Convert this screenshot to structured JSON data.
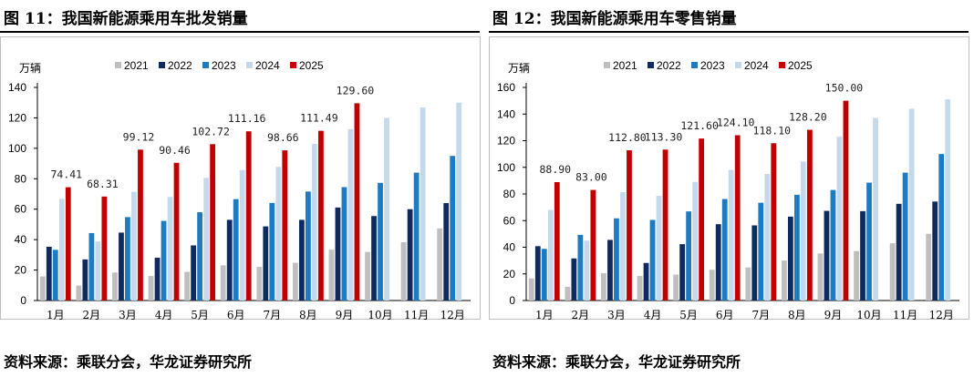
{
  "charts": [
    {
      "figure_title": "图 11：我国新能源乘用车批发销量",
      "source_note": "资料来源：乘联分会，华龙证券研究所",
      "chart_data": {
        "type": "bar",
        "unit_label": "万辆",
        "categories": [
          "1月",
          "2月",
          "3月",
          "4月",
          "5月",
          "6月",
          "7月",
          "8月",
          "9月",
          "10月",
          "11月",
          "12月"
        ],
        "ylim": [
          0,
          140
        ],
        "yticks": [
          0,
          20,
          40,
          60,
          80,
          100,
          120,
          140
        ],
        "legend_position": "top",
        "series": [
          {
            "name": "2021",
            "color": "#bfbfbf",
            "values": [
              15.8,
              9.8,
              18.4,
              16.1,
              18.8,
              23.1,
              22.1,
              24.8,
              33.4,
              31.9,
              38.3,
              47.4
            ]
          },
          {
            "name": "2022",
            "color": "#0e2a5e",
            "values": [
              35.3,
              27.0,
              44.6,
              28.1,
              36.2,
              53.0,
              48.7,
              53.0,
              61.1,
              55.5,
              60.0,
              64.0
            ]
          },
          {
            "name": "2023",
            "color": "#1f7bc1",
            "values": [
              33.3,
              44.3,
              54.8,
              52.3,
              58.0,
              66.6,
              64.1,
              71.6,
              74.5,
              77.3,
              84.0,
              95.0
            ]
          },
          {
            "name": "2024",
            "color": "#c5d9ec",
            "values": [
              66.8,
              38.8,
              71.4,
              68.1,
              80.6,
              85.7,
              87.8,
              102.9,
              112.6,
              119.9,
              126.8,
              130.0
            ]
          },
          {
            "name": "2025",
            "color": "#c00000",
            "values": [
              74.41,
              68.31,
              99.12,
              90.46,
              102.72,
              111.16,
              98.66,
              111.49,
              129.6,
              null,
              null,
              null
            ]
          }
        ],
        "data_labels": [
          "74.41",
          "68.31",
          "99.12",
          "90.46",
          "102.72",
          "111.16",
          "98.66",
          "111.49",
          "129.60"
        ]
      }
    },
    {
      "figure_title": "图 12：我国新能源乘用车零售销量",
      "source_note": "资料来源：乘联分会，华龙证券研究所",
      "chart_data": {
        "type": "bar",
        "unit_label": "万辆",
        "categories": [
          "1月",
          "2月",
          "3月",
          "4月",
          "5月",
          "6月",
          "7月",
          "8月",
          "9月",
          "10月",
          "11月",
          "12月"
        ],
        "ylim": [
          0,
          160
        ],
        "yticks": [
          0,
          20,
          40,
          60,
          80,
          100,
          120,
          140,
          160
        ],
        "legend_position": "top",
        "series": [
          {
            "name": "2021",
            "color": "#bfbfbf",
            "values": [
              16.6,
              10.3,
              20.5,
              18.4,
              19.5,
              23.1,
              24.8,
              30.0,
              35.3,
              37.1,
              43.0,
              50.1
            ]
          },
          {
            "name": "2022",
            "color": "#0e2a5e",
            "values": [
              40.8,
              31.6,
              45.5,
              28.2,
              42.3,
              57.3,
              56.4,
              63.0,
              67.3,
              67.1,
              72.6,
              74.3
            ]
          },
          {
            "name": "2023",
            "color": "#1f7bc1",
            "values": [
              38.8,
              49.3,
              61.7,
              60.5,
              66.9,
              76.2,
              73.4,
              79.4,
              83.0,
              88.5,
              96.0,
              110.0
            ]
          },
          {
            "name": "2024",
            "color": "#c5d9ec",
            "values": [
              68.0,
              45.0,
              81.3,
              78.6,
              89.0,
              98.0,
              95.0,
              104.4,
              123.0,
              137.0,
              144.0,
              151.0
            ]
          },
          {
            "name": "2025",
            "color": "#c00000",
            "values": [
              88.9,
              83.0,
              112.8,
              113.3,
              121.6,
              124.1,
              118.1,
              128.2,
              150.0,
              null,
              null,
              null
            ]
          }
        ],
        "data_labels": [
          "88.90",
          "83.00",
          "112.80",
          "113.30",
          "121.60",
          "124.10",
          "118.10",
          "128.20",
          "150.00"
        ]
      }
    }
  ]
}
